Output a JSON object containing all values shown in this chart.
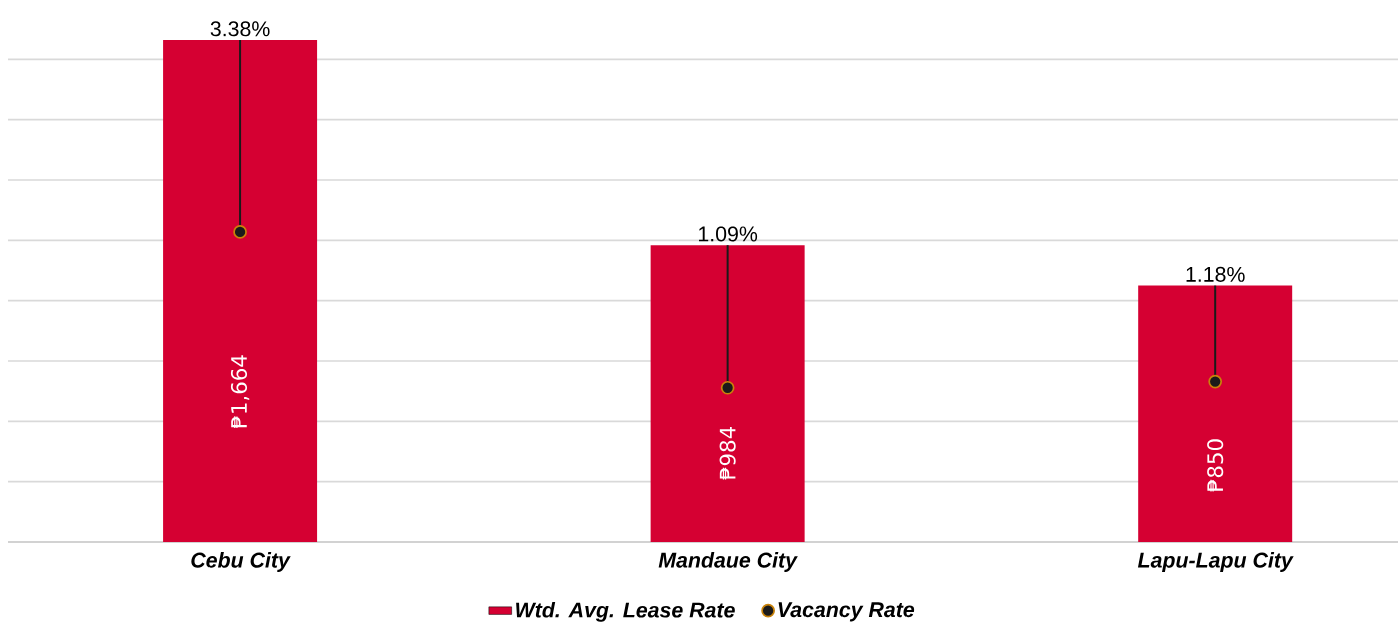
{
  "chart_data": {
    "type": "bar",
    "categories": [
      "Cebu City",
      "Mandaue City",
      "Lapu-Lapu City"
    ],
    "series": [
      {
        "name": "Wtd. Avg. Lease Rate",
        "color": "#d50032",
        "values": [
          1664,
          984,
          850
        ],
        "value_labels": [
          "₱1,664",
          "₱984",
          "₱850"
        ]
      },
      {
        "name": "Vacancy Rate",
        "type": "scatter",
        "axis": "y2",
        "color": "#1a1a1a",
        "values": [
          3.38,
          1.09,
          1.18
        ],
        "value_labels": [
          "3.38%",
          "1.09%",
          "1.18%"
        ]
      }
    ],
    "yticks": [
      {
        "value": 0,
        "label": null
      },
      {
        "value": 200,
        "label": null
      },
      {
        "value": 400,
        "label": null
      },
      {
        "value": 600,
        "label": null
      },
      {
        "value": 800,
        "label": null
      },
      {
        "value": 1000,
        "label": null
      },
      {
        "value": 1200,
        "label": null
      },
      {
        "value": 1400,
        "label": null
      },
      {
        "value": 1600,
        "label": null
      },
      {
        "value": 1800,
        "label": null
      }
    ],
    "grid": "y",
    "tick_labels": "x",
    "legend": "bottom",
    "marker": "circle"
  }
}
